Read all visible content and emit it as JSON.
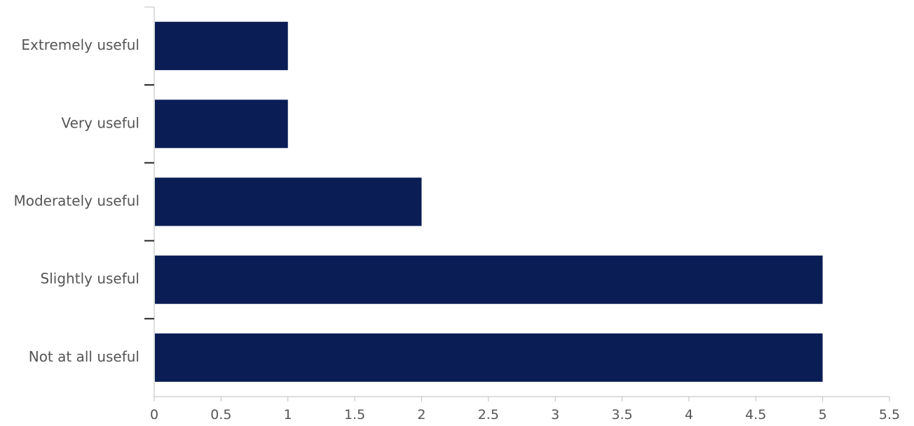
{
  "chart_data": {
    "type": "bar",
    "orientation": "horizontal",
    "title": "",
    "xlabel": "",
    "ylabel": "",
    "categories": [
      "Extremely useful",
      "Very useful",
      "Moderately useful",
      "Slightly useful",
      "Not at all useful"
    ],
    "values": [
      1,
      1,
      2,
      5,
      5
    ],
    "xlim": [
      0,
      5.5
    ],
    "xticks": [
      "0",
      "0.5",
      "1",
      "1.5",
      "2",
      "2.5",
      "3",
      "3.5",
      "4",
      "4.5",
      "5",
      "5.5"
    ],
    "bar_color": "#0a1d55",
    "axis_color": "#bdbdbd",
    "tick_mark_color": "#222222",
    "grid": false,
    "legend": "none"
  }
}
